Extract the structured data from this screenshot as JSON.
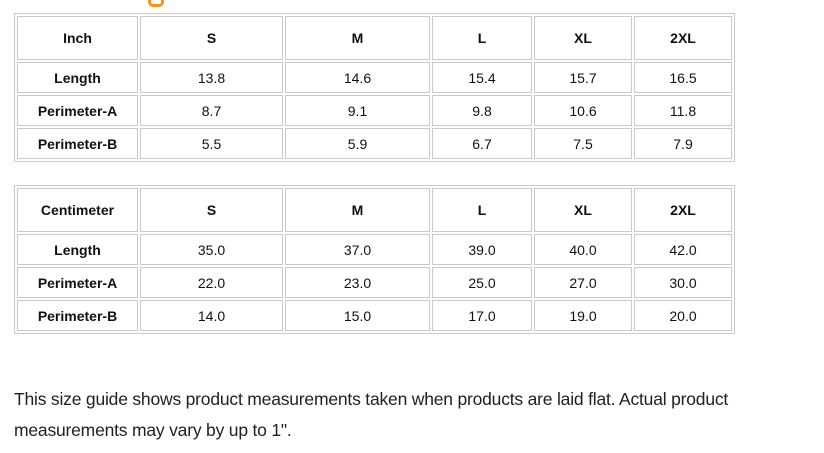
{
  "decor": {
    "heading_fragment_icon": "partial-orange-letter-descender",
    "accent_orange": "#f7941e"
  },
  "colors": {
    "table_border": "#c9c9c9",
    "text": "#212121",
    "background": "#ffffff"
  },
  "tables": [
    {
      "unit": "Inch",
      "sizes": [
        "S",
        "M",
        "L",
        "XL",
        "2XL"
      ],
      "rows": [
        {
          "label": "Length",
          "values": [
            "13.8",
            "14.6",
            "15.4",
            "15.7",
            "16.5"
          ]
        },
        {
          "label": "Perimeter-A",
          "values": [
            "8.7",
            "9.1",
            "9.8",
            "10.6",
            "11.8"
          ]
        },
        {
          "label": "Perimeter-B",
          "values": [
            "5.5",
            "5.9",
            "6.7",
            "7.5",
            "7.9"
          ]
        }
      ]
    },
    {
      "unit": "Centimeter",
      "sizes": [
        "S",
        "M",
        "L",
        "XL",
        "2XL"
      ],
      "rows": [
        {
          "label": "Length",
          "values": [
            "35.0",
            "37.0",
            "39.0",
            "40.0",
            "42.0"
          ]
        },
        {
          "label": "Perimeter-A",
          "values": [
            "22.0",
            "23.0",
            "25.0",
            "27.0",
            "30.0"
          ]
        },
        {
          "label": "Perimeter-B",
          "values": [
            "14.0",
            "15.0",
            "17.0",
            "19.0",
            "20.0"
          ]
        }
      ]
    }
  ],
  "note": {
    "line1": "This size guide shows product measurements taken when products are laid flat. Actual product",
    "line2": "measurements may vary by up to 1\"."
  }
}
